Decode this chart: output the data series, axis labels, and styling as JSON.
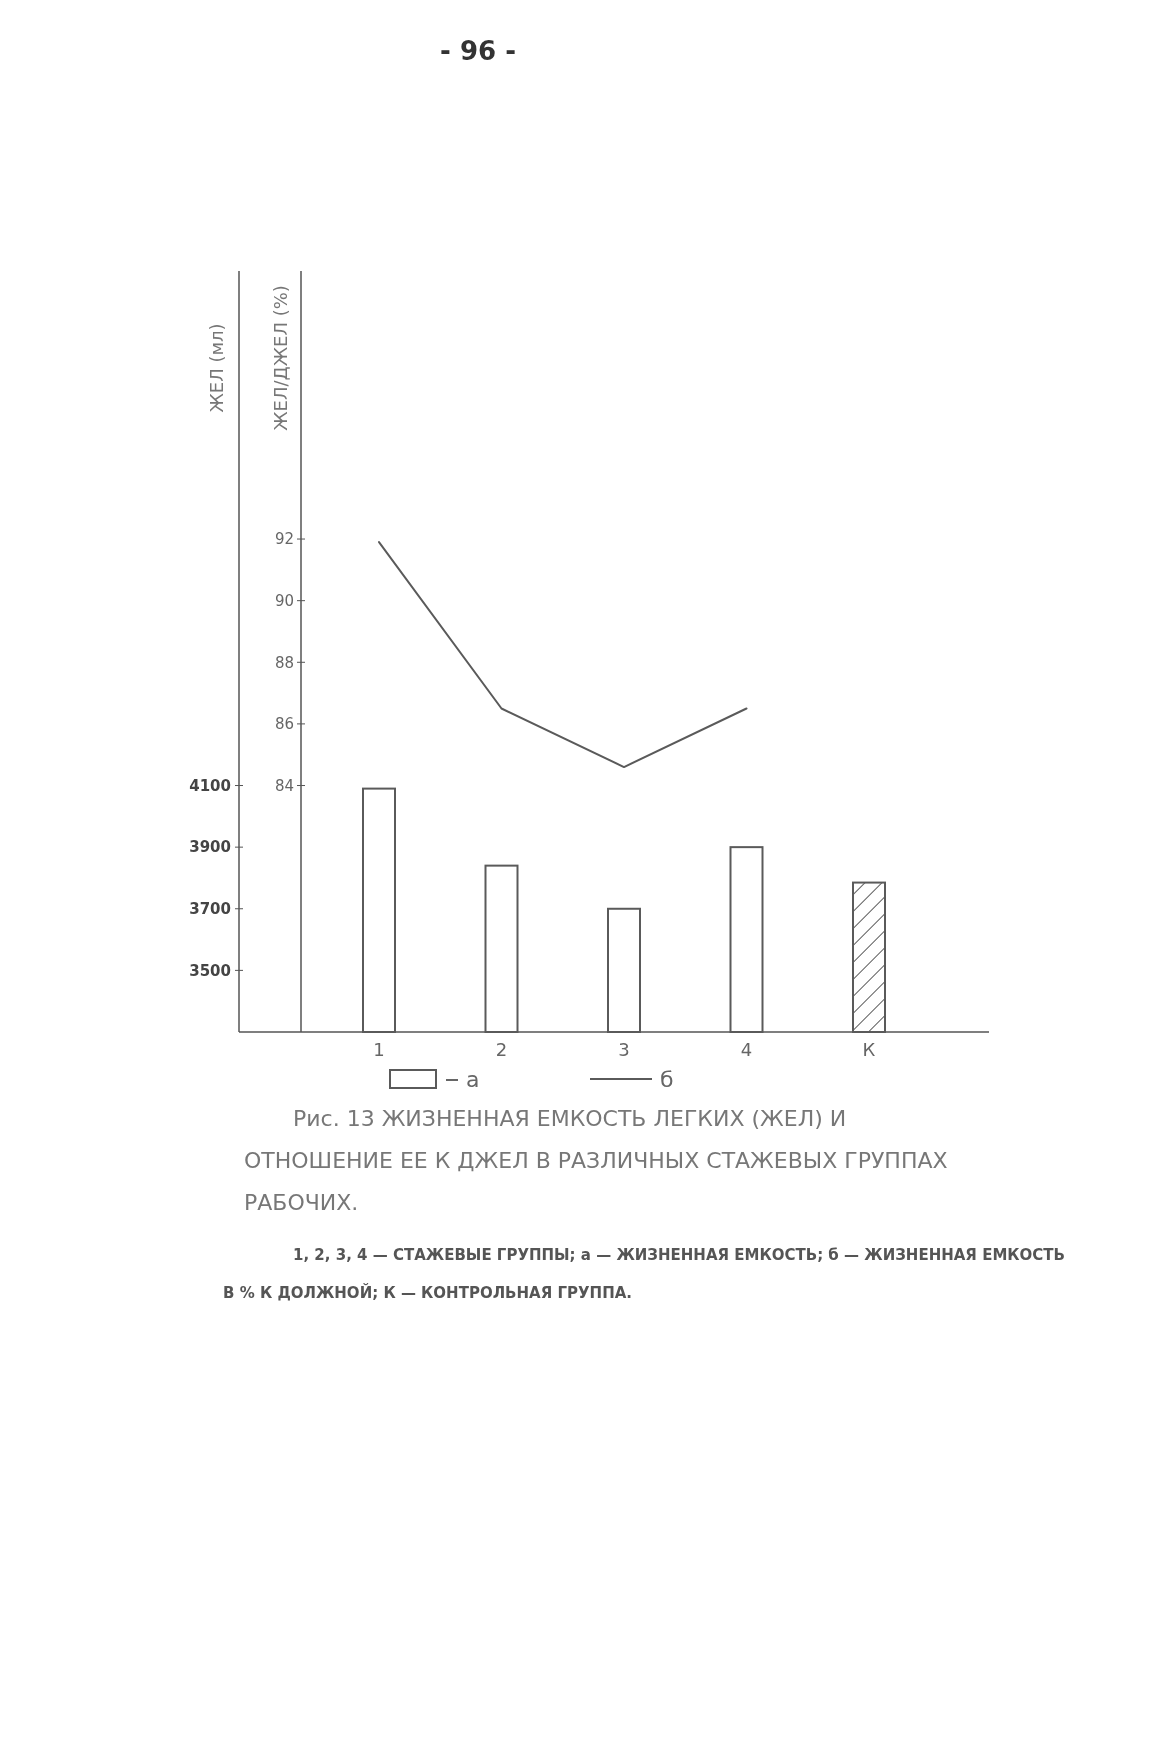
{
  "chart_data": {
    "type": "bar",
    "title": "Рис. 13 ЖИЗНЕННАЯ ЕМКОСТЬ ЛЕГКИХ (ЖЕЛ) И ОТНОШЕНИЕ ЕЕ К ДЖЕЛ В РАЗЛИЧНЫХ СТАЖЕВЫХ ГРУППАХ РАБОЧИХ.",
    "ylabel": "ЖЕЛ (мл)",
    "y2label": "ЖЕЛ/ДЖЕЛ (%)",
    "categories": [
      "1",
      "2",
      "3",
      "4",
      "К"
    ],
    "series": [
      {
        "name": "а",
        "color": "#5a5a5a",
        "colors": [
          "#ffffff",
          "#ffffff",
          "#ffffff",
          "#ffffff",
          "#5a5a5a"
        ],
        "values": [
          4090,
          3840,
          3700,
          3900,
          3785
        ]
      },
      {
        "name": "б",
        "type": "line",
        "axis": "y2",
        "color": "#5a5a5a",
        "values": [
          91.9,
          86.5,
          84.6,
          86.5,
          null
        ]
      }
    ],
    "ylim": [
      3300,
      5770
    ],
    "yticks": [
      3500,
      3700,
      3900,
      4100
    ],
    "y2lim": [
      76,
      100.7
    ],
    "y2ticks": [
      84,
      86,
      88,
      90,
      92
    ],
    "legend": "bottom",
    "grid": false,
    "annotations": [
      "- 96 -",
      "1, 2, 3, 4 — СТАЖЕВЫЕ ГРУППЫ; а — ЖИЗНЕННАЯ ЕМКОСТЬ; б — ЖИЗНЕННАЯ ЕМКОСТЬ В % К ДОЛЖНОЙ; К — КОНТРОЛЬНАЯ ГРУППА."
    ]
  }
}
